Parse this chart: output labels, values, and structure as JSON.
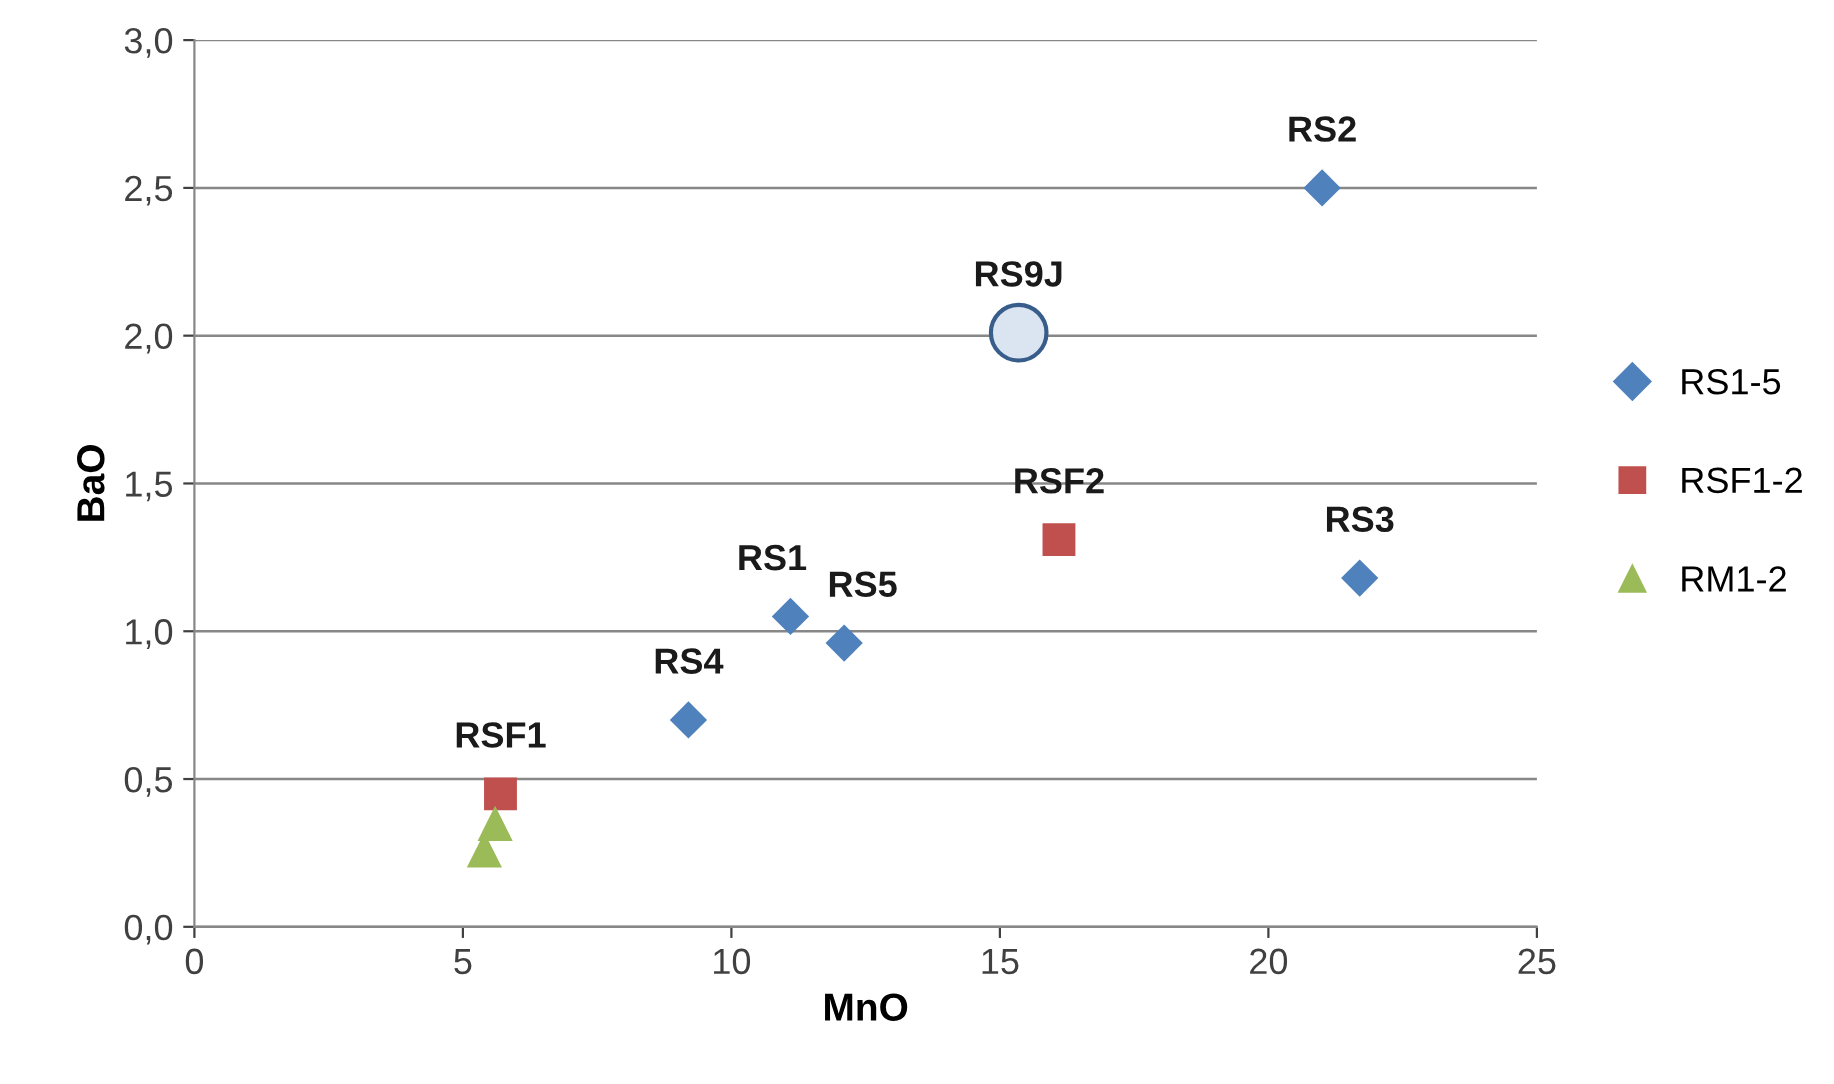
{
  "chart_data": {
    "type": "scatter",
    "xlabel": "MnO",
    "ylabel": "BaO",
    "xlim": [
      0,
      25
    ],
    "xticks": [
      0,
      5,
      10,
      15,
      20,
      25
    ],
    "ylim": [
      0,
      3
    ],
    "yticks": [
      {
        "value": 0,
        "label": "0,0"
      },
      {
        "value": 0.5,
        "label": "0,5"
      },
      {
        "value": 1,
        "label": "1,0"
      },
      {
        "value": 1.5,
        "label": "1,5"
      },
      {
        "value": 2,
        "label": "2,0"
      },
      {
        "value": 2.5,
        "label": "2,5"
      },
      {
        "value": 3,
        "label": "3,0"
      }
    ],
    "grid": "y",
    "legend": "right",
    "series": [
      {
        "name": "RS1-5",
        "color": "#4f81bd",
        "marker": "diamond",
        "x": [
          21.0,
          21.7,
          11.1,
          12.1,
          9.2
        ],
        "values": [
          2.5,
          1.18,
          1.05,
          0.96,
          0.7
        ]
      },
      {
        "name": "RSF1-2",
        "color": "#c0504d",
        "marker": "square",
        "x": [
          16.1,
          5.7
        ],
        "values": [
          1.31,
          0.45
        ]
      },
      {
        "name": "RM1-2",
        "color": "#9bbb59",
        "marker": "triangle",
        "x": [
          5.4,
          5.6
        ],
        "values": [
          0.26,
          0.35
        ]
      },
      {
        "color": "#dbe5f1",
        "marker": "circle",
        "x": [
          15.35
        ],
        "values": [
          2.01
        ]
      }
    ],
    "annotations": [
      {
        "text": "RS2",
        "x": 21.0,
        "y": 2.5
      },
      {
        "text": "RS3",
        "x": 21.7,
        "y": 1.18
      },
      {
        "text": "RS1",
        "x": 11.1,
        "y": 1.05
      },
      {
        "text": "RS5",
        "x": 12.1,
        "y": 0.96
      },
      {
        "text": "RS4",
        "x": 9.2,
        "y": 0.7
      },
      {
        "text": "RSF2",
        "x": 16.1,
        "y": 1.31
      },
      {
        "text": "RSF1",
        "x": 5.7,
        "y": 0.45
      },
      {
        "text": "RS9J",
        "x": 15.35,
        "y": 2.01
      }
    ]
  }
}
